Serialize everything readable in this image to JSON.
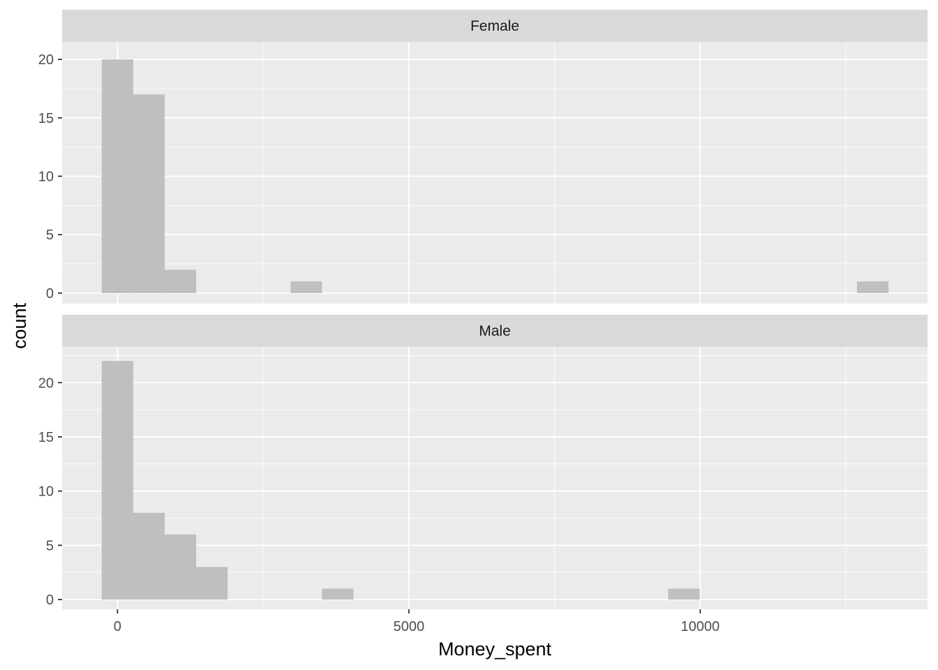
{
  "chart_data": {
    "type": "bar",
    "subtype": "faceted-histogram",
    "xlabel": "Money_spent",
    "ylabel": "count",
    "x_ticks": [
      0,
      5000,
      10000
    ],
    "x_tick_labels": [
      "0",
      "5000",
      "10000"
    ],
    "xlim": [
      -950,
      13900
    ],
    "bin_width": 540,
    "grid": true,
    "colors": {
      "panel_bg": "#EBEBEB",
      "strip_bg": "#D9D9D9",
      "grid_major": "#FFFFFF",
      "bar_fill": "#BFBFBF"
    },
    "facets": [
      {
        "label": "Female",
        "ylim": [
          -0.9,
          21.5
        ],
        "y_ticks": [
          0,
          5,
          10,
          15,
          20
        ],
        "y_tick_labels": [
          "0",
          "5",
          "10",
          "15",
          "20"
        ],
        "bins": [
          {
            "x": 0,
            "count": 20
          },
          {
            "x": 540,
            "count": 17
          },
          {
            "x": 1080,
            "count": 2
          },
          {
            "x": 3240,
            "count": 1
          },
          {
            "x": 12960,
            "count": 1
          }
        ]
      },
      {
        "label": "Male",
        "ylim": [
          -0.9,
          23.3
        ],
        "y_ticks": [
          0,
          5,
          10,
          15,
          20
        ],
        "y_tick_labels": [
          "0",
          "5",
          "10",
          "15",
          "20"
        ],
        "bins": [
          {
            "x": 0,
            "count": 22
          },
          {
            "x": 540,
            "count": 8
          },
          {
            "x": 1080,
            "count": 6
          },
          {
            "x": 1620,
            "count": 3
          },
          {
            "x": 3780,
            "count": 1
          },
          {
            "x": 9720,
            "count": 1
          }
        ]
      }
    ]
  }
}
